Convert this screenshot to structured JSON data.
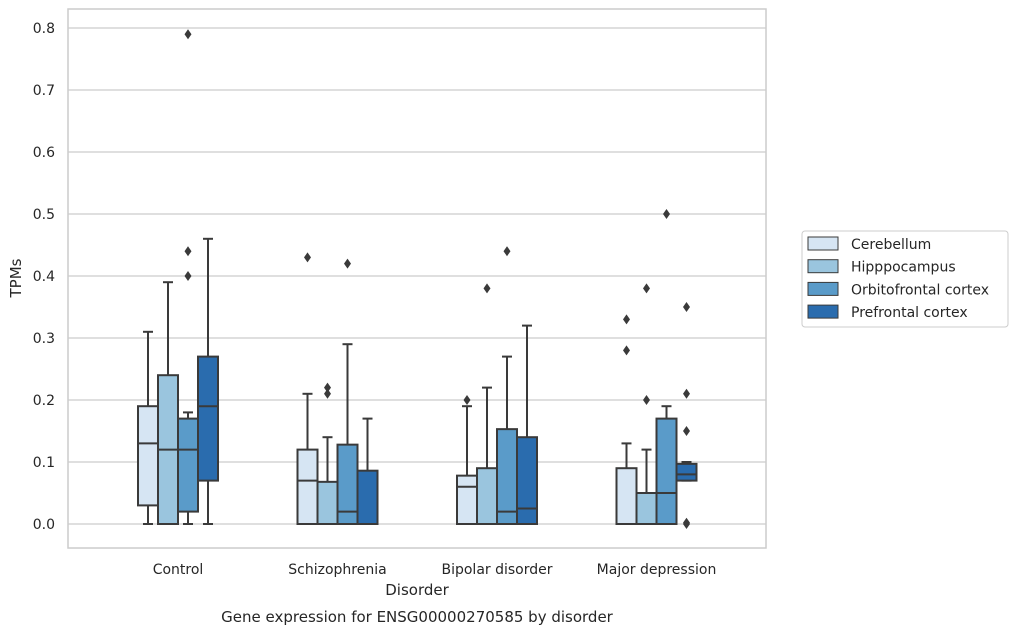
{
  "chart_data": {
    "type": "box",
    "caption": "Gene expression for ENSG00000270585 by disorder",
    "xlabel": "Disorder",
    "ylabel": "TPMs",
    "ylim": [
      -0.04,
      0.83
    ],
    "yticks": [
      0.0,
      0.1,
      0.2,
      0.3,
      0.4,
      0.5,
      0.6,
      0.7,
      0.8
    ],
    "ytick_labels": [
      "0.0",
      "0.1",
      "0.2",
      "0.3",
      "0.4",
      "0.5",
      "0.6",
      "0.7",
      "0.8"
    ],
    "grid": "horizontal",
    "legend_position": "right",
    "categories": [
      "Control",
      "Schizophrenia",
      "Bipolar disorder",
      "Major depression"
    ],
    "series": [
      {
        "name": "Cerebellum",
        "color": "#d6e5f3",
        "boxes": [
          {
            "whislo": 0.0,
            "q1": 0.03,
            "med": 0.13,
            "q3": 0.19,
            "whishi": 0.31,
            "fliers": []
          },
          {
            "whislo": 0.0,
            "q1": 0.0,
            "med": 0.07,
            "q3": 0.12,
            "whishi": 0.21,
            "fliers": [
              0.43
            ]
          },
          {
            "whislo": 0.0,
            "q1": 0.0,
            "med": 0.06,
            "q3": 0.078,
            "whishi": 0.19,
            "fliers": [
              0.2
            ]
          },
          {
            "whislo": 0.0,
            "q1": 0.0,
            "med": 0.0,
            "q3": 0.09,
            "whishi": 0.13,
            "fliers": [
              0.28,
              0.33
            ]
          }
        ]
      },
      {
        "name": "Hipppocampus",
        "color": "#9ac5de",
        "boxes": [
          {
            "whislo": 0.0,
            "q1": 0.0,
            "med": 0.12,
            "q3": 0.24,
            "whishi": 0.39,
            "fliers": []
          },
          {
            "whislo": 0.0,
            "q1": 0.0,
            "med": 0.0,
            "q3": 0.068,
            "whishi": 0.14,
            "fliers": [
              0.21,
              0.22
            ]
          },
          {
            "whislo": 0.0,
            "q1": 0.0,
            "med": 0.0,
            "q3": 0.09,
            "whishi": 0.22,
            "fliers": [
              0.38
            ]
          },
          {
            "whislo": 0.0,
            "q1": 0.0,
            "med": 0.05,
            "q3": 0.05,
            "whishi": 0.12,
            "fliers": [
              0.2,
              0.38
            ]
          }
        ]
      },
      {
        "name": "Orbitofrontal cortex",
        "color": "#5a9bc9",
        "boxes": [
          {
            "whislo": 0.0,
            "q1": 0.02,
            "med": 0.12,
            "q3": 0.17,
            "whishi": 0.18,
            "fliers": [
              0.4,
              0.44,
              0.79
            ]
          },
          {
            "whislo": 0.0,
            "q1": 0.0,
            "med": 0.02,
            "q3": 0.128,
            "whishi": 0.29,
            "fliers": [
              0.42
            ]
          },
          {
            "whislo": 0.0,
            "q1": 0.0,
            "med": 0.02,
            "q3": 0.153,
            "whishi": 0.27,
            "fliers": [
              0.44
            ]
          },
          {
            "whislo": 0.0,
            "q1": 0.0,
            "med": 0.05,
            "q3": 0.17,
            "whishi": 0.19,
            "fliers": [
              0.5
            ]
          }
        ]
      },
      {
        "name": "Prefrontal cortex",
        "color": "#2a6cae",
        "boxes": [
          {
            "whislo": 0.0,
            "q1": 0.07,
            "med": 0.19,
            "q3": 0.27,
            "whishi": 0.46,
            "fliers": []
          },
          {
            "whislo": 0.0,
            "q1": 0.0,
            "med": 0.0,
            "q3": 0.086,
            "whishi": 0.17,
            "fliers": []
          },
          {
            "whislo": 0.0,
            "q1": 0.0,
            "med": 0.025,
            "q3": 0.14,
            "whishi": 0.32,
            "fliers": []
          },
          {
            "whislo": 0.07,
            "q1": 0.07,
            "med": 0.08,
            "q3": 0.097,
            "whishi": 0.1,
            "fliers": [
              0.0,
              0.002,
              0.15,
              0.21,
              0.35
            ]
          }
        ]
      }
    ]
  }
}
